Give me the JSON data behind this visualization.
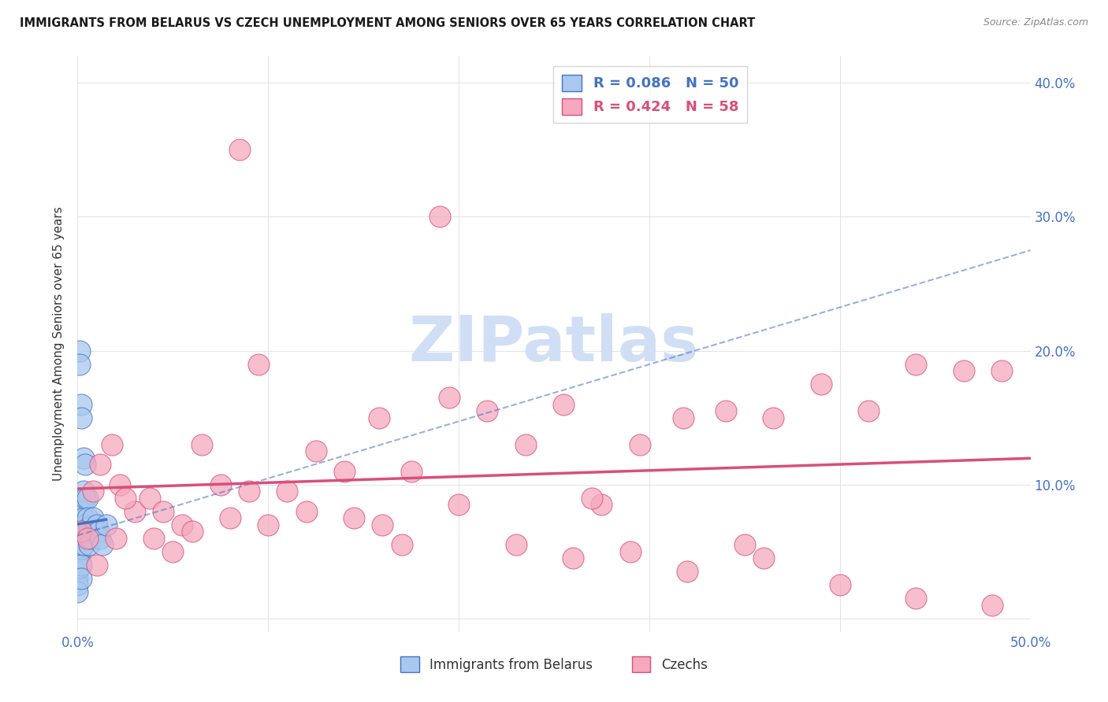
{
  "title": "IMMIGRANTS FROM BELARUS VS CZECH UNEMPLOYMENT AMONG SENIORS OVER 65 YEARS CORRELATION CHART",
  "source": "Source: ZipAtlas.com",
  "ylabel": "Unemployment Among Seniors over 65 years",
  "xlim": [
    0.0,
    0.5
  ],
  "ylim": [
    -0.01,
    0.42
  ],
  "color_blue": "#A8C8EE",
  "color_blue_dark": "#4472C4",
  "color_pink": "#F5A8BE",
  "color_pink_dark": "#D94F78",
  "watermark": "ZIPatlas",
  "watermark_color": "#D0DFF5",
  "legend_R1": "R = 0.086",
  "legend_N1": "N = 50",
  "legend_R2": "R = 0.424",
  "legend_N2": "N = 58",
  "legend_label1": "Immigrants from Belarus",
  "legend_label2": "Czechs",
  "belarus_x": [
    0.0,
    0.0,
    0.0,
    0.0,
    0.0,
    0.0,
    0.0,
    0.0,
    0.0,
    0.0,
    0.001,
    0.001,
    0.001,
    0.001,
    0.001,
    0.001,
    0.001,
    0.001,
    0.001,
    0.001,
    0.002,
    0.002,
    0.002,
    0.002,
    0.002,
    0.002,
    0.002,
    0.002,
    0.002,
    0.002,
    0.003,
    0.003,
    0.003,
    0.003,
    0.003,
    0.004,
    0.004,
    0.004,
    0.005,
    0.005,
    0.006,
    0.006,
    0.007,
    0.008,
    0.009,
    0.01,
    0.011,
    0.012,
    0.013,
    0.015
  ],
  "belarus_y": [
    0.065,
    0.06,
    0.058,
    0.05,
    0.045,
    0.04,
    0.035,
    0.03,
    0.025,
    0.02,
    0.2,
    0.19,
    0.07,
    0.068,
    0.065,
    0.062,
    0.058,
    0.05,
    0.045,
    0.038,
    0.16,
    0.15,
    0.085,
    0.08,
    0.07,
    0.065,
    0.06,
    0.052,
    0.04,
    0.03,
    0.12,
    0.095,
    0.075,
    0.065,
    0.055,
    0.115,
    0.09,
    0.07,
    0.09,
    0.075,
    0.068,
    0.055,
    0.06,
    0.075,
    0.065,
    0.07,
    0.065,
    0.06,
    0.055,
    0.07
  ],
  "czech_x": [
    0.002,
    0.005,
    0.008,
    0.012,
    0.018,
    0.022,
    0.03,
    0.038,
    0.045,
    0.055,
    0.065,
    0.075,
    0.085,
    0.095,
    0.11,
    0.125,
    0.14,
    0.158,
    0.175,
    0.195,
    0.215,
    0.235,
    0.255,
    0.275,
    0.295,
    0.318,
    0.34,
    0.365,
    0.39,
    0.415,
    0.44,
    0.465,
    0.485,
    0.02,
    0.04,
    0.06,
    0.08,
    0.1,
    0.12,
    0.145,
    0.17,
    0.2,
    0.23,
    0.26,
    0.29,
    0.32,
    0.36,
    0.4,
    0.44,
    0.48,
    0.01,
    0.025,
    0.05,
    0.09,
    0.35,
    0.16,
    0.27,
    0.19
  ],
  "czech_y": [
    0.065,
    0.06,
    0.095,
    0.115,
    0.13,
    0.1,
    0.08,
    0.09,
    0.08,
    0.07,
    0.13,
    0.1,
    0.35,
    0.19,
    0.095,
    0.125,
    0.11,
    0.15,
    0.11,
    0.165,
    0.155,
    0.13,
    0.16,
    0.085,
    0.13,
    0.15,
    0.155,
    0.15,
    0.175,
    0.155,
    0.19,
    0.185,
    0.185,
    0.06,
    0.06,
    0.065,
    0.075,
    0.07,
    0.08,
    0.075,
    0.055,
    0.085,
    0.055,
    0.045,
    0.05,
    0.035,
    0.045,
    0.025,
    0.015,
    0.01,
    0.04,
    0.09,
    0.05,
    0.095,
    0.055,
    0.07,
    0.09,
    0.3
  ],
  "belarus_trend_x0": 0.0,
  "belarus_trend_x1": 0.015,
  "czech_trend_x0": 0.0,
  "czech_trend_x1": 0.5,
  "dash_trend_x0": 0.0,
  "dash_trend_x1": 0.5
}
